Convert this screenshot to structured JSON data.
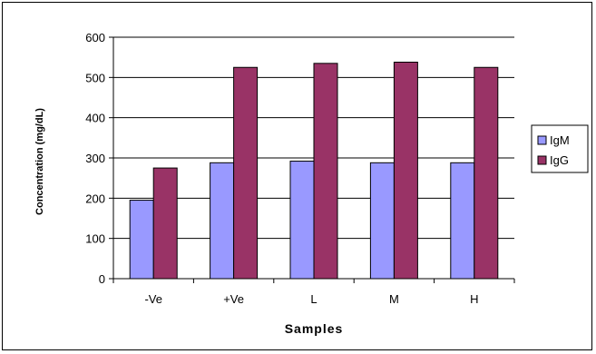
{
  "chart_data": {
    "type": "bar",
    "categories": [
      "-Ve",
      "+Ve",
      "L",
      "M",
      "H"
    ],
    "series": [
      {
        "name": "IgM",
        "values": [
          195,
          288,
          292,
          288,
          288
        ],
        "color": "#9999ff"
      },
      {
        "name": "IgG",
        "values": [
          275,
          525,
          535,
          538,
          525
        ],
        "color": "#993366"
      }
    ],
    "title": "",
    "xlabel": "Samples",
    "ylabel": "Concentration (mg/dL)",
    "ylim": [
      0,
      600
    ],
    "yticks": [
      0,
      100,
      200,
      300,
      400,
      500,
      600
    ],
    "grid": true,
    "legend_position": "right"
  }
}
